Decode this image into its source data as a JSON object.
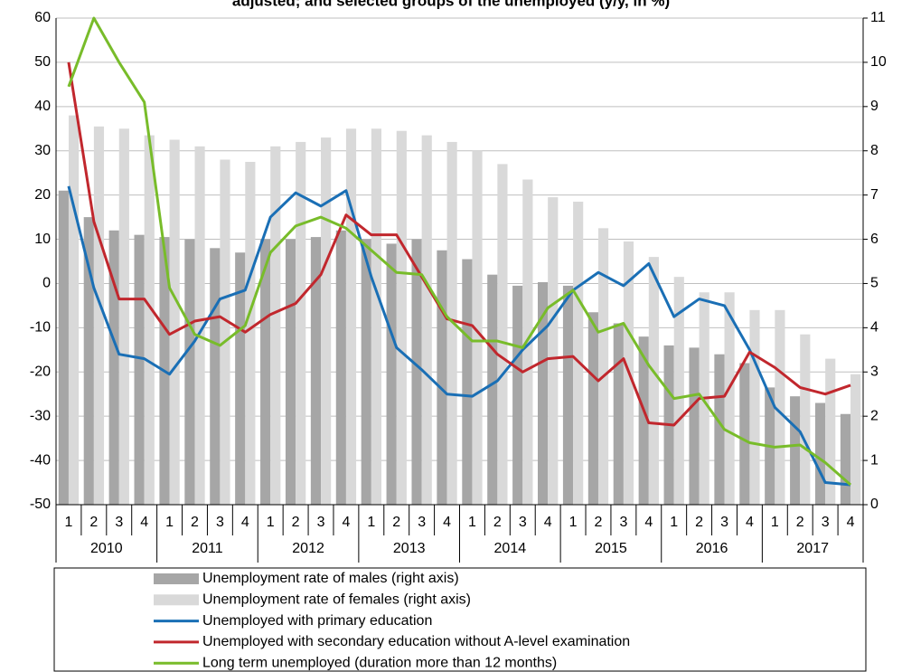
{
  "chart_data": {
    "type": "combo",
    "title": "adjusted; and selected groups of the unemployed (y/y, in %)",
    "categories": [
      "1",
      "2",
      "3",
      "4",
      "1",
      "2",
      "3",
      "4",
      "1",
      "2",
      "3",
      "4",
      "1",
      "2",
      "3",
      "4",
      "1",
      "2",
      "3",
      "4",
      "1",
      "2",
      "3",
      "4",
      "1",
      "2",
      "3",
      "4",
      "1",
      "2",
      "3",
      "4"
    ],
    "years": [
      "2010",
      "2011",
      "2012",
      "2013",
      "2014",
      "2015",
      "2016",
      "2017"
    ],
    "ylim": [
      -50,
      60
    ],
    "yticks": [
      -50,
      -40,
      -30,
      -20,
      -10,
      0,
      10,
      20,
      30,
      40,
      50,
      60
    ],
    "y2lim": [
      0,
      11
    ],
    "y2ticks": [
      0,
      1,
      2,
      3,
      4,
      5,
      6,
      7,
      8,
      9,
      10,
      11
    ],
    "grid": true,
    "series": [
      {
        "name": "Unemployment rate of males (right axis)",
        "type": "bar",
        "axis": "y2",
        "color": "#a6a6a6",
        "values": [
          7.1,
          6.5,
          6.2,
          6.1,
          6.05,
          6.0,
          5.8,
          5.7,
          6.0,
          6.0,
          6.05,
          6.2,
          6.0,
          5.9,
          6.0,
          5.75,
          5.55,
          5.2,
          4.95,
          5.03,
          4.95,
          4.35,
          4.1,
          3.8,
          3.6,
          3.55,
          3.4,
          3.2,
          2.65,
          2.45,
          2.3,
          2.05
        ]
      },
      {
        "name": "Unemployment rate of females (right axis)",
        "type": "bar",
        "axis": "y2",
        "color": "#d9d9d9",
        "values": [
          8.8,
          8.55,
          8.5,
          8.35,
          8.25,
          8.1,
          7.8,
          7.75,
          8.1,
          8.2,
          8.3,
          8.5,
          8.5,
          8.45,
          8.35,
          8.2,
          8.0,
          7.7,
          7.35,
          6.95,
          6.85,
          6.25,
          5.95,
          5.6,
          5.15,
          4.8,
          4.8,
          4.4,
          4.4,
          3.85,
          3.3,
          2.95
        ]
      },
      {
        "name": "Unemployed with primary education",
        "type": "line",
        "color": "#1a6fb5",
        "values": [
          22,
          -1,
          -16,
          -17,
          -20.5,
          -13,
          -3.5,
          -1.5,
          15,
          20.5,
          17.5,
          21,
          1.5,
          -14.5,
          -19.5,
          -25,
          -25.5,
          -22,
          -15,
          -9.5,
          -1.5,
          2.5,
          -0.5,
          4.5,
          -7.5,
          -3.5,
          -5,
          -15,
          -28,
          -33.5,
          -45,
          -45.5
        ]
      },
      {
        "name": "Unemployed with secondary education without A-level examination",
        "type": "line",
        "color": "#c1272d",
        "values": [
          50,
          14,
          -3.5,
          -3.5,
          -11.5,
          -8.5,
          -7.5,
          -11,
          -7,
          -4.5,
          2,
          15.5,
          11,
          11,
          1.5,
          -8,
          -9.5,
          -16,
          -20,
          -17,
          -16.5,
          -22,
          -17,
          -31.5,
          -32,
          -26,
          -25.5,
          -15.5,
          -19,
          -23.5,
          -25,
          -23
        ]
      },
      {
        "name": "Long term unemployed (duration more than 12 months)",
        "type": "line",
        "color": "#78bc2a",
        "values": [
          44.5,
          60,
          50,
          41,
          -1,
          -11.5,
          -14,
          -9.5,
          7,
          13,
          15,
          12.5,
          7.5,
          2.5,
          2,
          -7.5,
          -13,
          -13,
          -14.5,
          -5.5,
          -1.5,
          -11,
          -9,
          -18.5,
          -26,
          -25,
          -33,
          -36,
          -37,
          -36.5,
          -40.5,
          -45.5
        ]
      }
    ]
  }
}
